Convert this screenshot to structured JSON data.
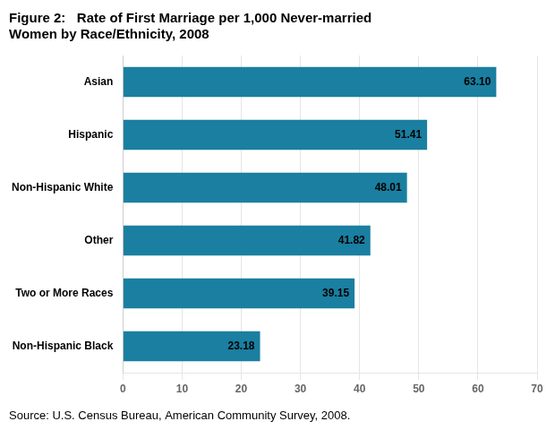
{
  "chart_data": {
    "type": "bar",
    "orientation": "horizontal",
    "title": [
      "Figure 2:   Rate of First Marriage per 1,000 Never-married",
      "Women by Race/Ethnicity, 2008"
    ],
    "source": "Source: U.S. Census Bureau, American Community Survey, 2008.",
    "categories": [
      "Asian",
      "Hispanic",
      "Non-Hispanic White",
      "Other",
      "Two or More Races",
      "Non-Hispanic Black"
    ],
    "values": [
      63.1,
      51.41,
      48.01,
      41.82,
      39.15,
      23.18
    ],
    "value_labels": [
      "63.10",
      "51.41",
      "48.01",
      "41.82",
      "39.15",
      "23.18"
    ],
    "data_labels": true,
    "color": "#1a7fa0",
    "xlim": [
      0,
      70
    ],
    "xticks": [
      0,
      10,
      20,
      30,
      40,
      50,
      60,
      70
    ],
    "grid": true
  }
}
